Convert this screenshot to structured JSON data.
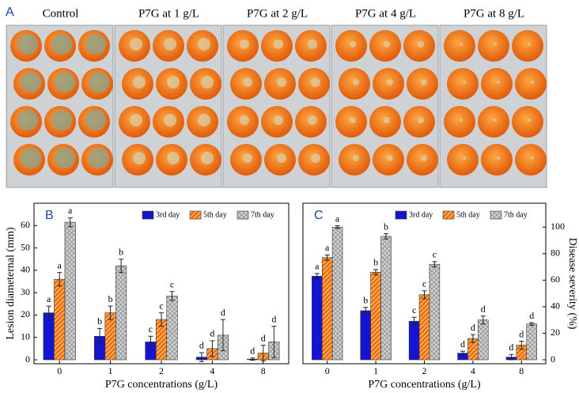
{
  "photo_panel": {
    "label": "A",
    "labels": [
      "Control",
      "P7G at 1 g/L",
      "P7G at 2 g/L",
      "P7G at 4 g/L",
      "P7G at 8 g/L"
    ]
  },
  "chart_data": [
    {
      "type": "bar",
      "panel": "B",
      "categories": [
        "0",
        "1",
        "2",
        "4",
        "8"
      ],
      "x_label": "P7G concentrations (g/L)",
      "y_label": "Lesion diameternal (mm)",
      "y_side": "left",
      "ylim": [
        0,
        70
      ],
      "yticks": [
        0,
        10,
        20,
        30,
        40,
        50,
        60
      ],
      "series": [
        {
          "name": "3rd day",
          "color": "#1414d2",
          "values": [
            21,
            10.5,
            8,
            1.2,
            0.3
          ],
          "errors": [
            3,
            3.5,
            2.5,
            2,
            0.5
          ],
          "significance": [
            "a",
            "b",
            "c",
            "d",
            "d"
          ]
        },
        {
          "name": "5th day",
          "color": "#f07000",
          "values": [
            36,
            21,
            18,
            5,
            3
          ],
          "errors": [
            3,
            3,
            3,
            3.5,
            3.5
          ],
          "significance": [
            "a",
            "b",
            "c",
            "d",
            "d"
          ]
        },
        {
          "name": "7th day",
          "color": "#bbbbbb",
          "values": [
            61.5,
            42,
            28.5,
            11,
            8
          ],
          "errors": [
            2,
            3,
            2,
            7,
            7
          ],
          "significance": [
            "a",
            "b",
            "c",
            "d",
            "d"
          ]
        }
      ]
    },
    {
      "type": "bar",
      "panel": "C",
      "categories": [
        "0",
        "1",
        "2",
        "4",
        "8"
      ],
      "x_label": "P7G concentrations (g/L)",
      "y_label": "Disease severity (%)",
      "y_side": "right",
      "ylim": [
        0,
        118
      ],
      "yticks": [
        0,
        20,
        40,
        60,
        80,
        100
      ],
      "series": [
        {
          "name": "3rd day",
          "color": "#1414d2",
          "values": [
            63,
            37,
            29,
            5,
            2
          ],
          "errors": [
            2,
            2.5,
            3,
            1.5,
            2
          ],
          "significance": [
            "a",
            "b",
            "c",
            "d",
            "d"
          ]
        },
        {
          "name": "5th day",
          "color": "#f07000",
          "values": [
            77,
            66,
            49,
            16,
            11
          ],
          "errors": [
            2,
            2,
            3,
            3,
            3
          ],
          "significance": [
            "a",
            "b",
            "c",
            "d",
            "d"
          ]
        },
        {
          "name": "7th day",
          "color": "#bbbbbb",
          "values": [
            100,
            93,
            72,
            30,
            27
          ],
          "errors": [
            1,
            2,
            2,
            3,
            1
          ],
          "significance": [
            "a",
            "b",
            "c",
            "d",
            "d"
          ]
        }
      ]
    }
  ]
}
